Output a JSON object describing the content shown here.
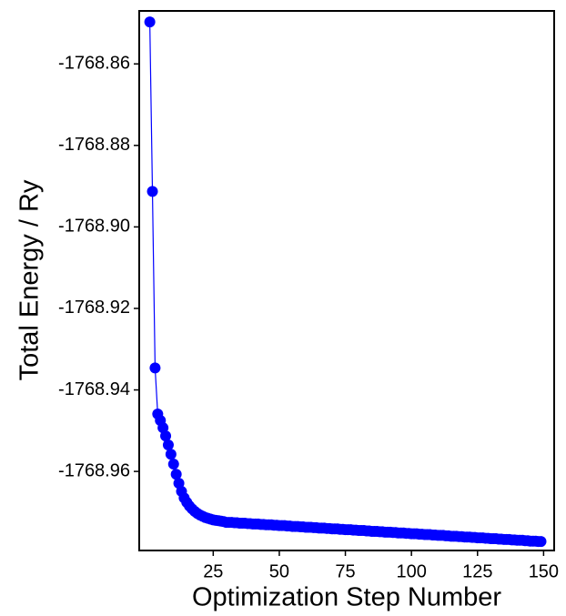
{
  "chart_data": {
    "type": "line",
    "ylabel": "Total Energy / Ry",
    "xlabel": "Optimization Step Number",
    "color": "#0000ff",
    "xlim": [
      -3,
      154
    ],
    "ylim": [
      -1768.9794,
      -1768.847
    ],
    "xticks": [
      25,
      50,
      75,
      100,
      125,
      150
    ],
    "yticks": [
      -1768.86,
      -1768.88,
      {
        "value": -1768.9,
        "label": "-1768.90"
      },
      -1768.92,
      -1768.94,
      -1768.96
    ],
    "grid": false,
    "x": [
      1,
      2,
      3,
      4,
      5,
      6,
      7,
      8,
      9,
      10,
      11,
      12,
      13,
      14,
      15,
      16,
      17,
      18,
      19,
      20,
      21,
      22,
      23,
      24,
      25,
      26,
      27,
      28,
      29,
      30,
      31,
      32,
      33,
      34,
      35,
      36,
      37,
      38,
      39,
      40,
      41,
      42,
      43,
      44,
      45,
      46,
      47,
      48,
      49,
      50,
      51,
      52,
      53,
      54,
      55,
      56,
      57,
      58,
      59,
      60,
      61,
      62,
      63,
      64,
      65,
      66,
      67,
      68,
      69,
      70,
      71,
      72,
      73,
      74,
      75,
      76,
      77,
      78,
      79,
      80,
      81,
      82,
      83,
      84,
      85,
      86,
      87,
      88,
      89,
      90,
      91,
      92,
      93,
      94,
      95,
      96,
      97,
      98,
      99,
      100,
      101,
      102,
      103,
      104,
      105,
      106,
      107,
      108,
      109,
      110,
      111,
      112,
      113,
      114,
      115,
      116,
      117,
      118,
      119,
      120,
      121,
      122,
      123,
      124,
      125,
      126,
      127,
      128,
      129,
      130,
      131,
      132,
      133,
      134,
      135,
      136,
      137,
      138,
      139,
      140,
      141,
      142,
      143,
      144,
      145,
      146,
      147,
      148,
      149
    ],
    "values": [
      -1768.8497,
      -1768.8913,
      -1768.9346,
      -1768.9459,
      -1768.9475,
      -1768.9493,
      -1768.9513,
      -1768.9535,
      -1768.9558,
      -1768.9582,
      -1768.9607,
      -1768.9629,
      -1768.9649,
      -1768.9665,
      -1768.9676,
      -1768.9685,
      -1768.9692,
      -1768.9698,
      -1768.9703,
      -1768.9707,
      -1768.971,
      -1768.9713,
      -1768.9715,
      -1768.9717,
      -1768.9719,
      -1768.972,
      -1768.9721,
      -1768.9722,
      -1768.9723,
      -1768.9725,
      -1768.9725,
      -1768.9725,
      -1768.9726,
      -1768.9726,
      -1768.9727,
      -1768.9727,
      -1768.9727,
      -1768.9728,
      -1768.9728,
      -1768.9729,
      -1768.9729,
      -1768.9729,
      -1768.973,
      -1768.973,
      -1768.9731,
      -1768.9731,
      -1768.9731,
      -1768.9732,
      -1768.9732,
      -1768.9733,
      -1768.9733,
      -1768.9733,
      -1768.9734,
      -1768.9734,
      -1768.9735,
      -1768.9735,
      -1768.9735,
      -1768.9736,
      -1768.9736,
      -1768.9737,
      -1768.9737,
      -1768.9737,
      -1768.9738,
      -1768.9738,
      -1768.9739,
      -1768.9739,
      -1768.9739,
      -1768.974,
      -1768.974,
      -1768.9741,
      -1768.9741,
      -1768.9741,
      -1768.9742,
      -1768.9742,
      -1768.9743,
      -1768.9743,
      -1768.9743,
      -1768.9744,
      -1768.9744,
      -1768.9745,
      -1768.9745,
      -1768.9745,
      -1768.9746,
      -1768.9746,
      -1768.9747,
      -1768.9747,
      -1768.9747,
      -1768.9748,
      -1768.9748,
      -1768.9749,
      -1768.9749,
      -1768.9749,
      -1768.975,
      -1768.975,
      -1768.9751,
      -1768.9751,
      -1768.9751,
      -1768.9752,
      -1768.9752,
      -1768.9753,
      -1768.9753,
      -1768.9753,
      -1768.9754,
      -1768.9754,
      -1768.9755,
      -1768.9755,
      -1768.9755,
      -1768.9756,
      -1768.9756,
      -1768.9757,
      -1768.9757,
      -1768.9757,
      -1768.9758,
      -1768.9758,
      -1768.9759,
      -1768.9759,
      -1768.9759,
      -1768.976,
      -1768.976,
      -1768.9761,
      -1768.9761,
      -1768.9761,
      -1768.9762,
      -1768.9762,
      -1768.9763,
      -1768.9763,
      -1768.9763,
      -1768.9764,
      -1768.9764,
      -1768.9765,
      -1768.9765,
      -1768.9765,
      -1768.9766,
      -1768.9766,
      -1768.9767,
      -1768.9767,
      -1768.9767,
      -1768.9768,
      -1768.9768,
      -1768.9769,
      -1768.9769,
      -1768.9769,
      -1768.977,
      -1768.977,
      -1768.9771,
      -1768.9771,
      -1768.9771,
      -1768.9772,
      -1768.9772
    ]
  }
}
